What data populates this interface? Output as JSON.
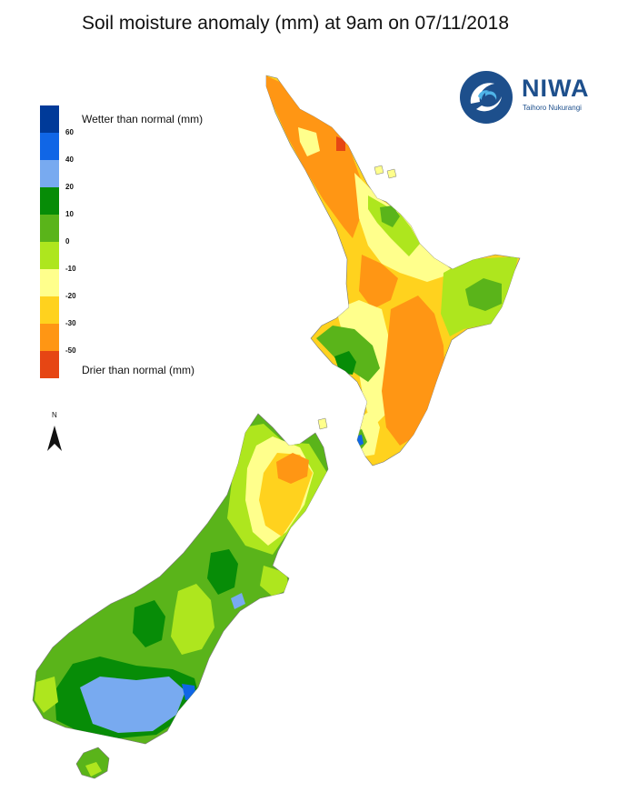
{
  "title": "Soil moisture anomaly (mm) at 9am on 07/11/2018",
  "logo": {
    "name": "NIWA",
    "tagline": "Taihoro Nukurangi"
  },
  "legend": {
    "wetter_label": "Wetter than normal (mm)",
    "drier_label": "Drier than normal (mm)",
    "classes": [
      {
        "color": "#003a99",
        "tick": "60"
      },
      {
        "color": "#1066e6",
        "tick": "40"
      },
      {
        "color": "#78aaf0",
        "tick": "20"
      },
      {
        "color": "#078c07",
        "tick": "10"
      },
      {
        "color": "#5ab41a",
        "tick": "0"
      },
      {
        "color": "#aee61e",
        "tick": "-10"
      },
      {
        "color": "#ffff8c",
        "tick": "-20"
      },
      {
        "color": "#ffd21e",
        "tick": "-30"
      },
      {
        "color": "#ff9614",
        "tick": "-50"
      },
      {
        "color": "#e64614",
        "tick": ""
      }
    ]
  },
  "north_arrow": {
    "label": "N"
  }
}
